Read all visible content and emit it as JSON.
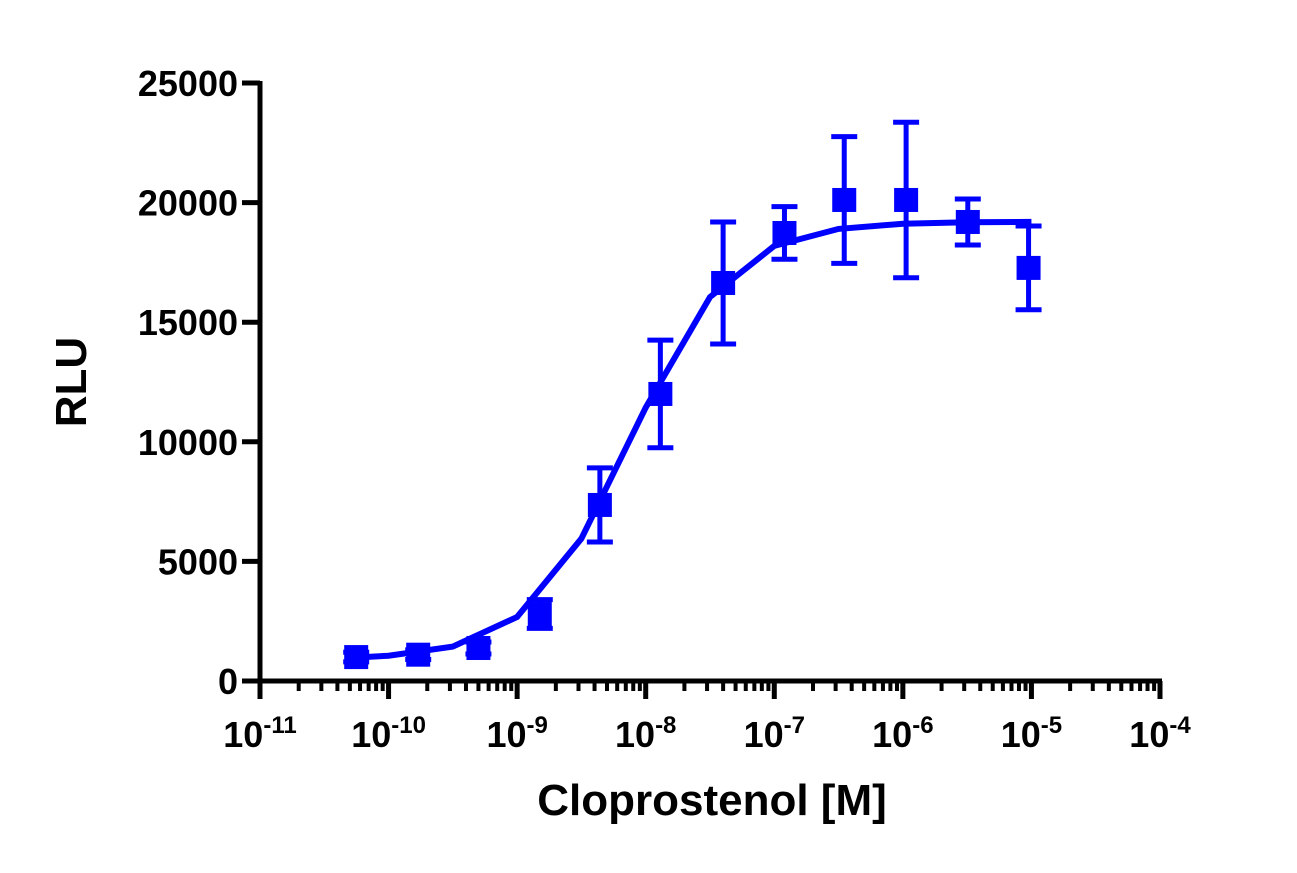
{
  "chart_data": {
    "type": "scatter",
    "x_label": "Cloprostenol [M]",
    "y_label": "RLU",
    "xscale": "log",
    "xlim": [
      1e-11,
      0.0001
    ],
    "xticks": [
      {
        "value": 1e-11,
        "label": "10-11"
      },
      {
        "value": 1e-10,
        "label": "10-10"
      },
      {
        "value": 1e-09,
        "label": "10-9"
      },
      {
        "value": 1e-08,
        "label": "10-8"
      },
      {
        "value": 1e-07,
        "label": "10-7"
      },
      {
        "value": 1e-06,
        "label": "10-6"
      },
      {
        "value": 1e-05,
        "label": "10-5"
      },
      {
        "value": 0.0001,
        "label": "10-4"
      }
    ],
    "ylim": [
      0,
      25000
    ],
    "yticks": [
      0,
      5000,
      10000,
      15000,
      20000,
      25000
    ],
    "series": [
      {
        "style": "markers",
        "color": "#0000ff",
        "x": [
          5.6e-11,
          1.7e-10,
          5e-10,
          1.5e-09,
          4.4e-09,
          1.3e-08,
          4e-08,
          1.2e-07,
          3.5e-07,
          1.06e-06,
          3.2e-06,
          9.5e-06
        ],
        "values": [
          1000,
          1100,
          1380,
          2800,
          7360,
          12000,
          16640,
          18730,
          20110,
          20110,
          19190,
          17270
        ],
        "errors": [
          200,
          200,
          250,
          600,
          1550,
          2250,
          2550,
          1100,
          2650,
          3250,
          960,
          1750
        ]
      },
      {
        "style": "line",
        "color": "#0000ff",
        "x": [
          5.6e-11,
          1e-10,
          3.16e-10,
          1e-09,
          3.16e-09,
          1e-08,
          3.16e-08,
          1e-07,
          3.16e-07,
          1e-06,
          3.16e-06,
          1e-05
        ],
        "values": [
          983,
          1055,
          1440,
          2678,
          5955,
          11430,
          16050,
          18190,
          18900,
          19115,
          19176,
          19193
        ]
      }
    ]
  }
}
